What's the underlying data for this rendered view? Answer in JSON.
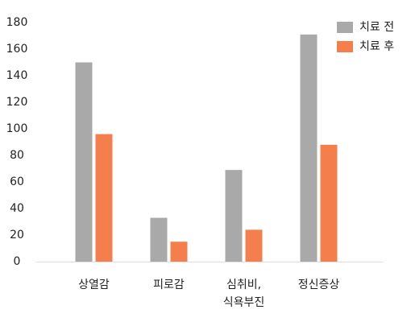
{
  "chart_data": {
    "type": "bar",
    "categories": [
      "상열감",
      "피로감",
      "심취비,\n식욕부진",
      "정신증상"
    ],
    "series": [
      {
        "name": "치료 전",
        "color": "#a9a9a9",
        "values": [
          150,
          33,
          69,
          171
        ]
      },
      {
        "name": "치료 후",
        "color": "#f47f4c",
        "values": [
          96,
          15,
          24,
          88
        ]
      }
    ],
    "ylim": [
      0,
      180
    ],
    "yticks": [
      0,
      20,
      40,
      60,
      80,
      100,
      120,
      140,
      160,
      180
    ],
    "grid": false,
    "legend": "top-right"
  }
}
